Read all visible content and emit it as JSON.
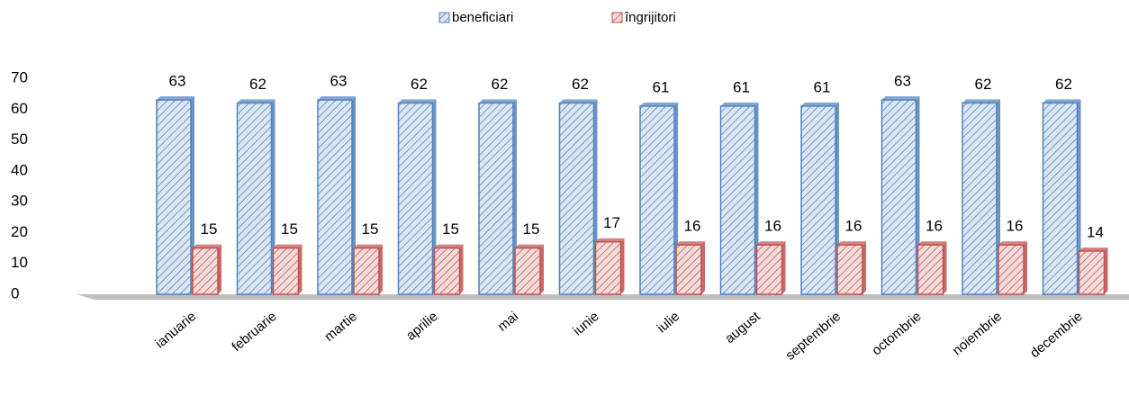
{
  "chart_data": {
    "type": "bar",
    "categories": [
      "ianuarie",
      "februarie",
      "martie",
      "aprilie",
      "mai",
      "iunie",
      "iulie",
      "august",
      "septembrie",
      "octombrie",
      "noiembrie",
      "decembrie"
    ],
    "series": [
      {
        "name": "beneficiari",
        "color": "#4f81bd",
        "values": [
          63,
          62,
          63,
          62,
          62,
          62,
          61,
          61,
          61,
          63,
          62,
          62
        ]
      },
      {
        "name": "îngrijitori",
        "color": "#c0504d",
        "values": [
          15,
          15,
          15,
          15,
          15,
          17,
          16,
          16,
          16,
          16,
          16,
          14
        ]
      }
    ],
    "ylim": [
      0,
      70
    ],
    "yticks": [
      0,
      10,
      20,
      30,
      40,
      50,
      60,
      70
    ],
    "legend": "top"
  }
}
